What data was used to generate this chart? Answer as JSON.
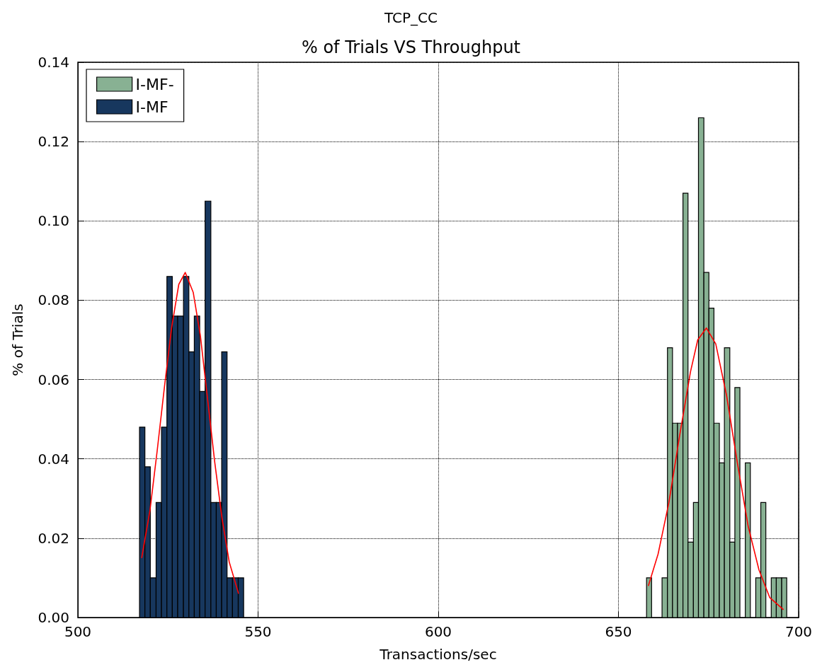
{
  "chart_data": {
    "type": "histogram",
    "title": "TCP_CC",
    "subtitle": "% of Trials VS Throughput",
    "xlabel": "Transactions/sec",
    "ylabel": "% of Trials",
    "xlim": [
      500,
      700
    ],
    "xticks": [
      500,
      550,
      600,
      650,
      700
    ],
    "ylim": [
      0,
      0.14
    ],
    "yticks": [
      {
        "value": 0,
        "label": "0.00"
      },
      {
        "value": 0.02,
        "label": "0.02"
      },
      {
        "value": 0.04,
        "label": "0.04"
      },
      {
        "value": 0.06,
        "label": "0.06"
      },
      {
        "value": 0.08,
        "label": "0.08"
      },
      {
        "value": 0.1,
        "label": "0.10"
      },
      {
        "value": 0.12,
        "label": "0.12"
      },
      {
        "value": 0.14,
        "label": "0.14"
      }
    ],
    "grid": true,
    "legend": "top left",
    "series": [
      {
        "name": "I-MF-",
        "color": "#88b193",
        "bins": [
          657.8,
          659.2,
          662.1,
          663.6,
          665.0,
          666.4,
          667.9,
          669.3,
          670.8,
          672.2,
          673.7,
          675.1,
          676.5,
          678.0,
          679.4,
          680.9,
          682.3,
          683.7,
          685.2,
          686.6,
          688.1,
          689.5,
          690.9,
          692.4,
          693.8,
          695.3,
          696.7
        ],
        "values": [
          0.01,
          0,
          0.01,
          0.068,
          0.049,
          0.049,
          0.107,
          0.019,
          0.029,
          0.126,
          0.087,
          0.078,
          0.049,
          0.039,
          0.068,
          0.019,
          0.058,
          0,
          0.039,
          0,
          0.01,
          0.029,
          0,
          0.01,
          0.01,
          0.01
        ]
      },
      {
        "name": "I-MF",
        "color": "#17375e",
        "bins": [
          517.1,
          518.6,
          520.1,
          521.7,
          523.2,
          524.7,
          526.2,
          527.7,
          529.3,
          530.8,
          532.3,
          533.8,
          535.3,
          536.9,
          538.4,
          539.9,
          541.4,
          542.9,
          544.5,
          546.0
        ],
        "values": [
          0.048,
          0.038,
          0.01,
          0.029,
          0.048,
          0.086,
          0.076,
          0.076,
          0.086,
          0.067,
          0.076,
          0.057,
          0.105,
          0.029,
          0.029,
          0.067,
          0.01,
          0.01,
          0.01
        ]
      },
      {
        "type": "line",
        "color": "#ff0000",
        "x": [
          517.7,
          520,
          522,
          524,
          526,
          528,
          529.8,
          532,
          534,
          536,
          538,
          540,
          542,
          544.6
        ],
        "values": [
          0.015,
          0.027,
          0.042,
          0.058,
          0.073,
          0.084,
          0.087,
          0.082,
          0.071,
          0.055,
          0.039,
          0.025,
          0.014,
          0.006
        ]
      },
      {
        "type": "line",
        "color": "#ff0000",
        "x": [
          658.3,
          661,
          664,
          667,
          670,
          672,
          674.4,
          677,
          680,
          683,
          686,
          689,
          692,
          695.8
        ],
        "values": [
          0.008,
          0.016,
          0.029,
          0.046,
          0.062,
          0.07,
          0.073,
          0.069,
          0.056,
          0.039,
          0.023,
          0.012,
          0.005,
          0.002
        ]
      }
    ]
  }
}
